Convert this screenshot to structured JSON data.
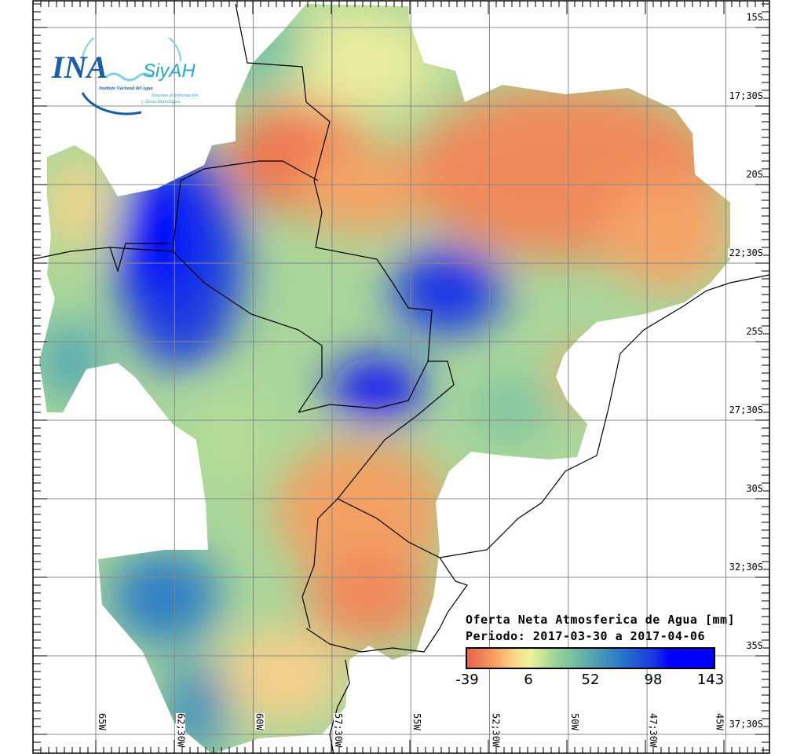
{
  "logo": {
    "acronym": "INA",
    "system": "SiyAH",
    "institution": "Instituto Nacional del Agua",
    "tagline_1": "Sistemas de información",
    "tagline_2": "y Alerta Hidrológico"
  },
  "legend": {
    "title": "Oferta Neta Atmosferica de Agua [mm]",
    "period": "Periodo: 2017-03-30 a 2017-04-06",
    "ticks": [
      "-39",
      "6",
      "52",
      "98",
      "143"
    ],
    "colors": [
      "#e8624e",
      "#f9dc8e",
      "#9ad398",
      "#2c79c8",
      "#0000ff"
    ]
  },
  "axes": {
    "lat_labels": [
      "15S",
      "17;30S",
      "20S",
      "22;30S",
      "25S",
      "27;30S",
      "30S",
      "32;30S",
      "35S",
      "37;30S"
    ],
    "lon_labels": [
      "65W",
      "62;30W",
      "60W",
      "57;30W",
      "55W",
      "52;30W",
      "50W",
      "47;30W",
      "45W"
    ]
  }
}
